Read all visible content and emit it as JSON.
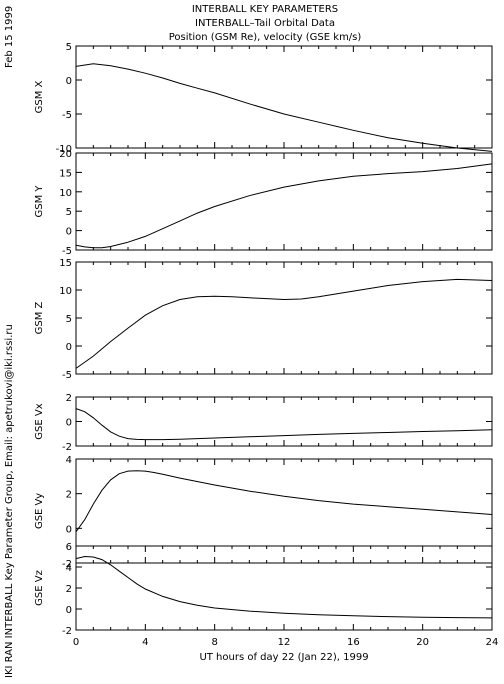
{
  "header": {
    "title_line1": "INTERBALL KEY PARAMETERS",
    "title_line2": "INTERBALL–Tail Orbital Data",
    "title_line3": "Position (GSM Re), velocity (GSE km/s)"
  },
  "side_labels": {
    "date": "Feb 15 1999",
    "credit": "IKI RAN INTERBALL Key Parameter Group, Email: apetrukovi@iki.rssi.ru"
  },
  "chart_data": [
    {
      "type": "line",
      "ylabel": "GSM X",
      "ylim": [
        -10,
        5
      ],
      "yticks": [
        5,
        0,
        -5,
        -10
      ],
      "grid": false,
      "x": [
        0,
        1,
        2,
        3,
        4,
        5,
        6,
        7,
        8,
        10,
        12,
        14,
        16,
        18,
        20,
        22,
        24
      ],
      "values": [
        2.0,
        2.4,
        2.1,
        1.6,
        1.0,
        0.3,
        -0.5,
        -1.2,
        -1.9,
        -3.5,
        -5.0,
        -6.2,
        -7.4,
        -8.5,
        -9.3,
        -10.0,
        -10.5
      ]
    },
    {
      "type": "line",
      "ylabel": "GSM Y",
      "ylim": [
        -5,
        20
      ],
      "yticks": [
        20,
        15,
        10,
        5,
        0,
        -5
      ],
      "grid": false,
      "x": [
        0,
        0.5,
        1,
        1.5,
        2,
        3,
        4,
        5,
        6,
        7,
        8,
        10,
        12,
        14,
        16,
        18,
        20,
        22,
        24
      ],
      "values": [
        -3.8,
        -4.2,
        -4.4,
        -4.4,
        -4.1,
        -3.0,
        -1.5,
        0.5,
        2.5,
        4.5,
        6.2,
        9.0,
        11.2,
        12.8,
        14.0,
        14.7,
        15.2,
        16.0,
        17.2
      ]
    },
    {
      "type": "line",
      "ylabel": "GSM Z",
      "ylim": [
        -5,
        15
      ],
      "yticks": [
        15,
        10,
        5,
        0,
        -5
      ],
      "grid": false,
      "x": [
        0,
        1,
        2,
        3,
        4,
        5,
        6,
        7,
        8,
        9,
        10,
        12,
        13,
        14,
        16,
        18,
        20,
        22,
        24
      ],
      "values": [
        -4.0,
        -1.8,
        0.8,
        3.2,
        5.5,
        7.2,
        8.3,
        8.8,
        8.9,
        8.8,
        8.6,
        8.3,
        8.4,
        8.8,
        9.8,
        10.8,
        11.5,
        11.9,
        11.7
      ]
    },
    {
      "type": "line",
      "ylabel": "GSE Vx",
      "ylim": [
        -2,
        2
      ],
      "yticks": [
        2,
        0,
        -2
      ],
      "grid": false,
      "x": [
        0,
        0.5,
        1,
        1.5,
        2,
        2.5,
        3,
        3.5,
        4,
        5,
        6,
        8,
        10,
        12,
        14,
        16,
        18,
        20,
        22,
        24
      ],
      "values": [
        1.05,
        0.8,
        0.3,
        -0.3,
        -0.85,
        -1.2,
        -1.4,
        -1.46,
        -1.48,
        -1.48,
        -1.45,
        -1.35,
        -1.25,
        -1.15,
        -1.05,
        -0.97,
        -0.9,
        -0.82,
        -0.75,
        -0.68
      ]
    },
    {
      "type": "line",
      "ylabel": "GSE Vy",
      "ylim": [
        -2,
        4
      ],
      "yticks": [
        4,
        2,
        0,
        -2
      ],
      "grid": false,
      "x": [
        0,
        0.5,
        1,
        1.5,
        2,
        2.5,
        3,
        3.5,
        4,
        4.5,
        5,
        6,
        8,
        10,
        12,
        14,
        16,
        18,
        20,
        22,
        24
      ],
      "values": [
        -0.2,
        0.5,
        1.4,
        2.2,
        2.8,
        3.15,
        3.3,
        3.32,
        3.3,
        3.22,
        3.12,
        2.9,
        2.5,
        2.15,
        1.85,
        1.6,
        1.4,
        1.25,
        1.1,
        0.95,
        0.8
      ]
    },
    {
      "type": "line",
      "ylabel": "GSE Vz",
      "ylim": [
        -2,
        6
      ],
      "yticks": [
        6,
        4,
        2,
        0,
        -2
      ],
      "grid": false,
      "x": [
        0,
        0.5,
        1,
        1.5,
        2,
        2.5,
        3,
        3.5,
        4,
        5,
        6,
        7,
        8,
        10,
        12,
        14,
        16,
        18,
        20,
        22,
        24
      ],
      "values": [
        4.8,
        5.0,
        4.95,
        4.7,
        4.2,
        3.6,
        3.0,
        2.4,
        1.9,
        1.2,
        0.7,
        0.35,
        0.1,
        -0.2,
        -0.4,
        -0.55,
        -0.65,
        -0.72,
        -0.78,
        -0.82,
        -0.85
      ]
    }
  ],
  "x_axis": {
    "label": "UT hours of day  22 (Jan 22), 1999",
    "xlim": [
      0,
      24
    ],
    "ticks": [
      0,
      4,
      8,
      12,
      16,
      20,
      24
    ]
  }
}
